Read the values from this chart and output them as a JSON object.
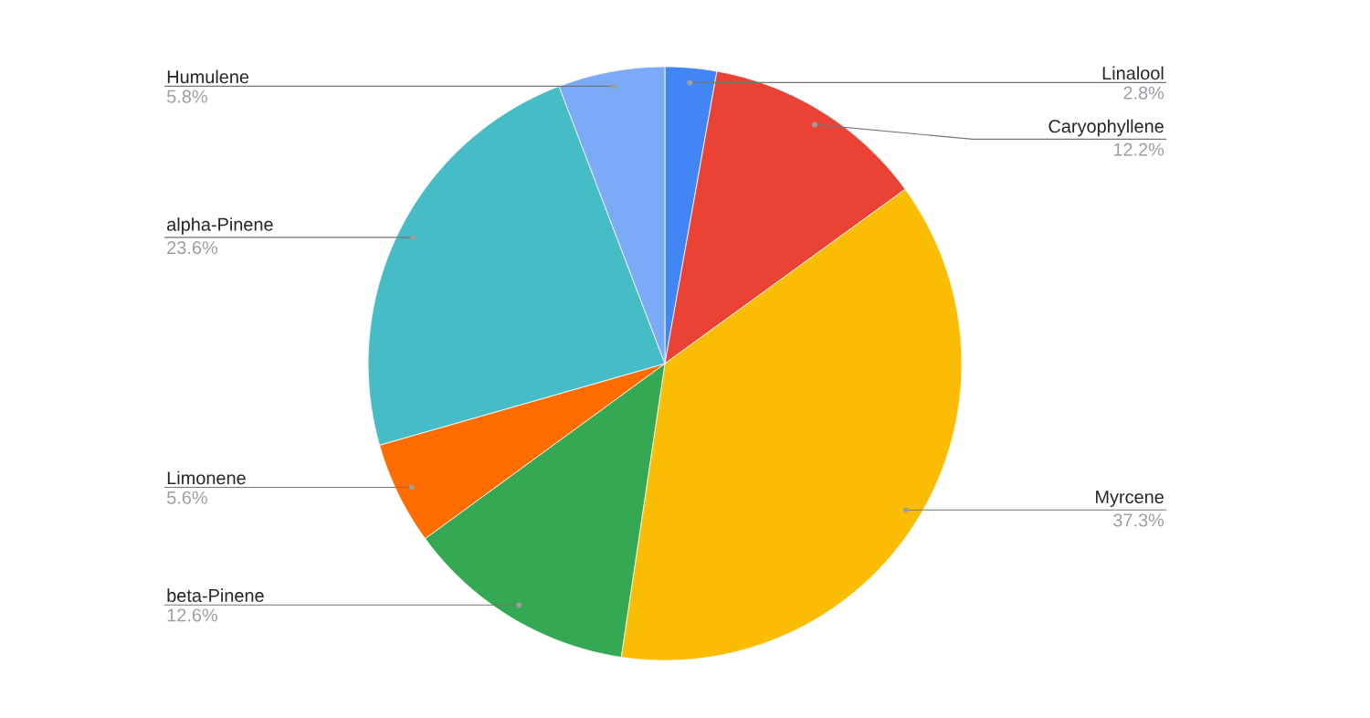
{
  "chart_data": {
    "type": "pie",
    "categories": [
      "Linalool",
      "Caryophyllene",
      "Myrcene",
      "beta-Pinene",
      "Limonene",
      "alpha-Pinene",
      "Humulene"
    ],
    "values": [
      2.8,
      12.2,
      37.3,
      12.6,
      5.6,
      23.6,
      5.8
    ],
    "colors": [
      "#4285f4",
      "#ea4335",
      "#fbbc04",
      "#34a853",
      "#ff6d01",
      "#46bdc6",
      "#7baaf7"
    ],
    "value_labels": [
      "2.8%",
      "12.2%",
      "37.3%",
      "12.6%",
      "5.6%",
      "23.6%",
      "5.8%"
    ]
  }
}
